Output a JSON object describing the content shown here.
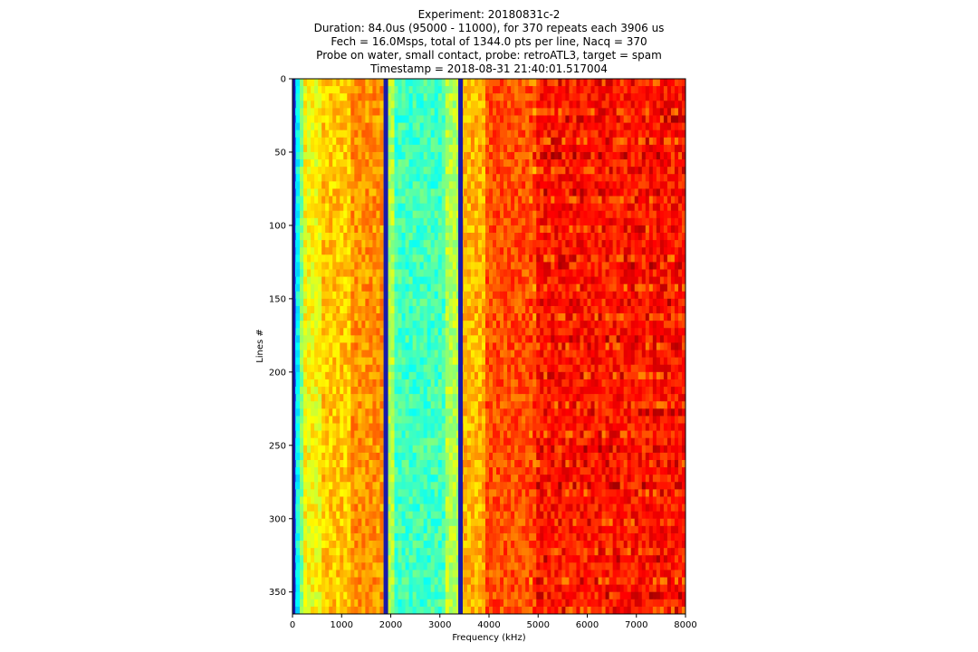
{
  "chart_data": {
    "type": "heatmap",
    "title_lines": [
      "Experiment: 20180831c-2",
      "Duration: 84.0us (95000 - 11000), for 370 repeats each 3906 us",
      "Fech = 16.0Msps, total of 1344.0 pts per line, Nacq = 370",
      "Probe on water, small contact, probe: retroATL3, target = spam",
      "Timestamp = 2018-08-31 21:40:01.517004"
    ],
    "xlabel": "Frequency (kHz)",
    "ylabel": "Lines #",
    "xlim": [
      0,
      8000
    ],
    "ylim": [
      365,
      0
    ],
    "x_ticks": [
      0,
      1000,
      2000,
      3000,
      4000,
      5000,
      6000,
      7000,
      8000
    ],
    "y_ticks": [
      0,
      50,
      100,
      150,
      200,
      250,
      300,
      350
    ],
    "colormap": "jet-like (blue-green-yellow-red)",
    "n_lines": 365,
    "vertical_lines_khz": [
      1900,
      3420
    ],
    "bands": [
      {
        "from_khz": 0,
        "to_khz": 250,
        "level": "green-cyan"
      },
      {
        "from_khz": 250,
        "to_khz": 1200,
        "level": "yellow"
      },
      {
        "from_khz": 1200,
        "to_khz": 1900,
        "level": "orange-yellow"
      },
      {
        "from_khz": 1900,
        "to_khz": 3420,
        "level": "green"
      },
      {
        "from_khz": 3420,
        "to_khz": 5000,
        "level": "orange-yellow"
      },
      {
        "from_khz": 5000,
        "to_khz": 8000,
        "level": "red-orange"
      }
    ]
  }
}
